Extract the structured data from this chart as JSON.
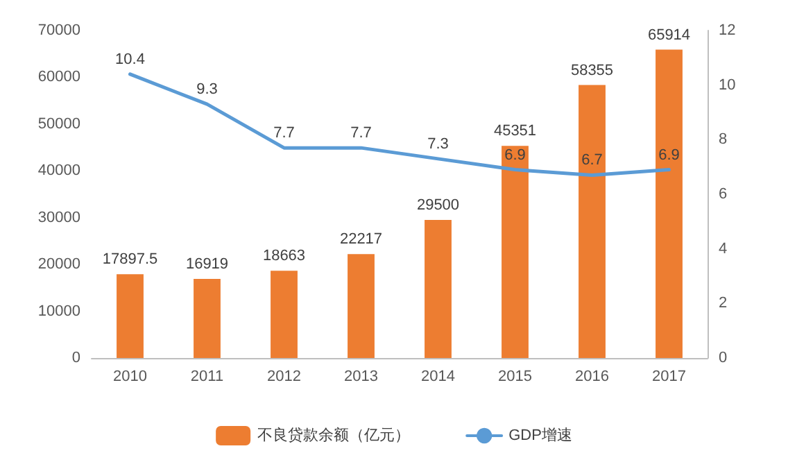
{
  "chart_data": {
    "type": "bar",
    "categories": [
      "2010",
      "2011",
      "2012",
      "2013",
      "2014",
      "2015",
      "2016",
      "2017"
    ],
    "series": [
      {
        "name": "不良贷款余额（亿元）",
        "color": "#ed7d31",
        "values": [
          17897.5,
          16919,
          18663,
          22217,
          29500,
          45351,
          58355,
          65914
        ]
      },
      {
        "name": "GDP增速",
        "type": "line",
        "axis": "y2",
        "color": "#5b9bd5",
        "values": [
          10.4,
          9.3,
          7.7,
          7.7,
          7.3,
          6.9,
          6.7,
          6.9
        ]
      }
    ],
    "ylim": [
      0,
      70000
    ],
    "yticks": [
      0,
      10000,
      20000,
      30000,
      40000,
      50000,
      60000,
      70000
    ],
    "y2lim": [
      0,
      12
    ],
    "y2ticks": [
      0,
      2,
      4,
      6,
      8,
      10,
      12
    ],
    "data_labels": true,
    "legend": "bottom",
    "grid": false,
    "marker": "none",
    "line_style": "solid"
  }
}
